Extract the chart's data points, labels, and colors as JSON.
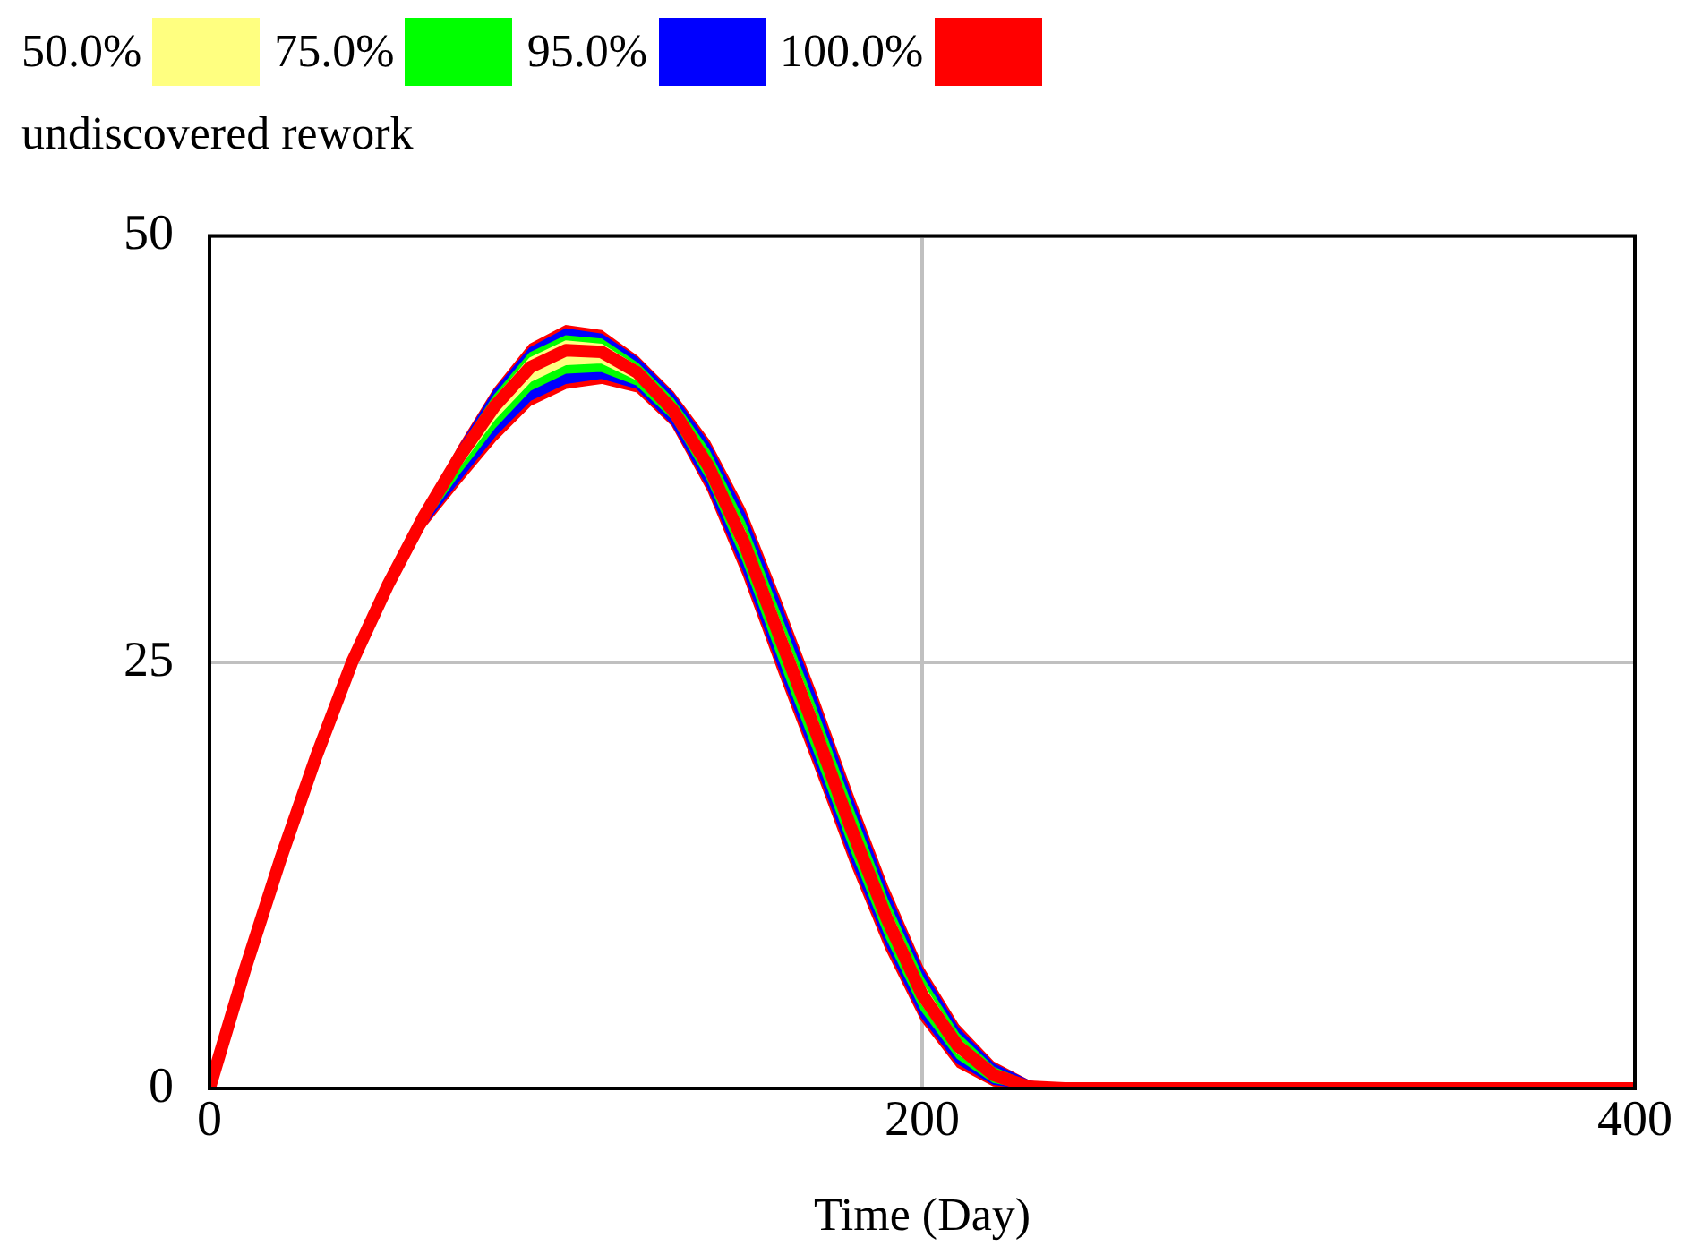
{
  "chart_data": {
    "type": "line",
    "title": "undiscovered rework",
    "xlabel": "Time (Day)",
    "x": [
      0,
      10,
      20,
      30,
      40,
      50,
      60,
      70,
      80,
      90,
      100,
      110,
      120,
      130,
      140,
      150,
      160,
      170,
      180,
      190,
      200,
      210,
      220,
      230,
      240,
      400
    ],
    "xlim": [
      0,
      400
    ],
    "xticks": [
      0,
      200,
      400
    ],
    "ylim": [
      0,
      50
    ],
    "yticks": [
      0,
      25,
      50
    ],
    "grid": true,
    "legend": "top",
    "marker": "none",
    "series": [
      {
        "name": "50.0%",
        "color": "#ffff80",
        "values": [
          null,
          null,
          null,
          null,
          null,
          null,
          null,
          null,
          null,
          null,
          null,
          null,
          null,
          null,
          null,
          null,
          null,
          null,
          null,
          null,
          null,
          null,
          null,
          null,
          null,
          null
        ],
        "lower": [
          0,
          7,
          13.5,
          19.5,
          25,
          29.5,
          33.3,
          36.5,
          39.3,
          41.5,
          42.5,
          42.6,
          41.6,
          39.5,
          36.0,
          31.3,
          25.8,
          20.3,
          14.6,
          9.4,
          5.0,
          2.1,
          0.6,
          0.1,
          0,
          0
        ],
        "upper": [
          0,
          7,
          13.5,
          19.5,
          25,
          29.5,
          33.6,
          37.2,
          40.4,
          42.8,
          43.8,
          43.6,
          42.3,
          40.2,
          37.0,
          32.7,
          27.3,
          21.8,
          16.0,
          10.7,
          6.1,
          2.9,
          1.0,
          0.2,
          0,
          0
        ]
      },
      {
        "name": "75.0%",
        "color": "#00ff00",
        "values": [
          null,
          null,
          null,
          null,
          null,
          null,
          null,
          null,
          null,
          null,
          null,
          null,
          null,
          null,
          null,
          null,
          null,
          null,
          null,
          null,
          null,
          null,
          null,
          null,
          null,
          null
        ],
        "lower": [
          0,
          7,
          13.5,
          19.5,
          25,
          29.4,
          33.1,
          36.1,
          38.8,
          41.0,
          42.0,
          42.1,
          41.3,
          39.3,
          35.7,
          30.9,
          25.2,
          19.7,
          14.1,
          8.9,
          4.6,
          1.8,
          0.4,
          0,
          0,
          0
        ],
        "upper": [
          0,
          7,
          13.5,
          19.5,
          25,
          29.5,
          33.6,
          37.4,
          40.6,
          43.1,
          44.1,
          43.9,
          42.5,
          40.4,
          37.4,
          33.2,
          27.8,
          22.3,
          16.6,
          11.1,
          6.5,
          3.2,
          1.2,
          0.3,
          0,
          0
        ]
      },
      {
        "name": "95.0%",
        "color": "#0000ff",
        "values": [
          null,
          null,
          null,
          null,
          null,
          null,
          null,
          null,
          null,
          null,
          null,
          null,
          null,
          null,
          null,
          null,
          null,
          null,
          null,
          null,
          null,
          null,
          null,
          null,
          null,
          null
        ],
        "lower": [
          0,
          7,
          13.5,
          19.5,
          25,
          29.4,
          33.0,
          35.7,
          38.3,
          40.4,
          41.4,
          41.7,
          41.1,
          39.0,
          35.3,
          30.4,
          24.7,
          19.2,
          13.6,
          8.5,
          4.2,
          1.5,
          0.3,
          0,
          0,
          0
        ],
        "upper": [
          0,
          7,
          13.5,
          19.5,
          25,
          29.5,
          33.7,
          37.5,
          40.9,
          43.4,
          44.5,
          44.2,
          42.8,
          40.7,
          37.8,
          33.7,
          28.4,
          22.9,
          17.1,
          11.6,
          6.9,
          3.5,
          1.4,
          0.4,
          0,
          0
        ]
      },
      {
        "name": "100.0%",
        "color": "#ff0000",
        "values": [
          0,
          7,
          13.5,
          19.5,
          25,
          29.5,
          33.5,
          37,
          40,
          42.3,
          43.3,
          43.2,
          42,
          39.8,
          36.5,
          32,
          26.5,
          21,
          15.3,
          10,
          5.5,
          2.5,
          0.8,
          0.1,
          0,
          0
        ],
        "lower": [
          0,
          7,
          13.5,
          19.5,
          25,
          29.4,
          32.9,
          35.5,
          38.0,
          40.1,
          41.1,
          41.4,
          40.9,
          38.9,
          35.1,
          30.1,
          24.4,
          18.9,
          13.3,
          8.2,
          4.0,
          1.3,
          0.2,
          0,
          0,
          0
        ],
        "upper": [
          0,
          7,
          13.5,
          19.5,
          25,
          29.5,
          33.7,
          37.6,
          41.0,
          43.6,
          44.7,
          44.4,
          42.9,
          40.8,
          38.0,
          34.0,
          28.7,
          23.2,
          17.4,
          11.9,
          7.1,
          3.7,
          1.5,
          0.4,
          0,
          0
        ]
      }
    ]
  }
}
